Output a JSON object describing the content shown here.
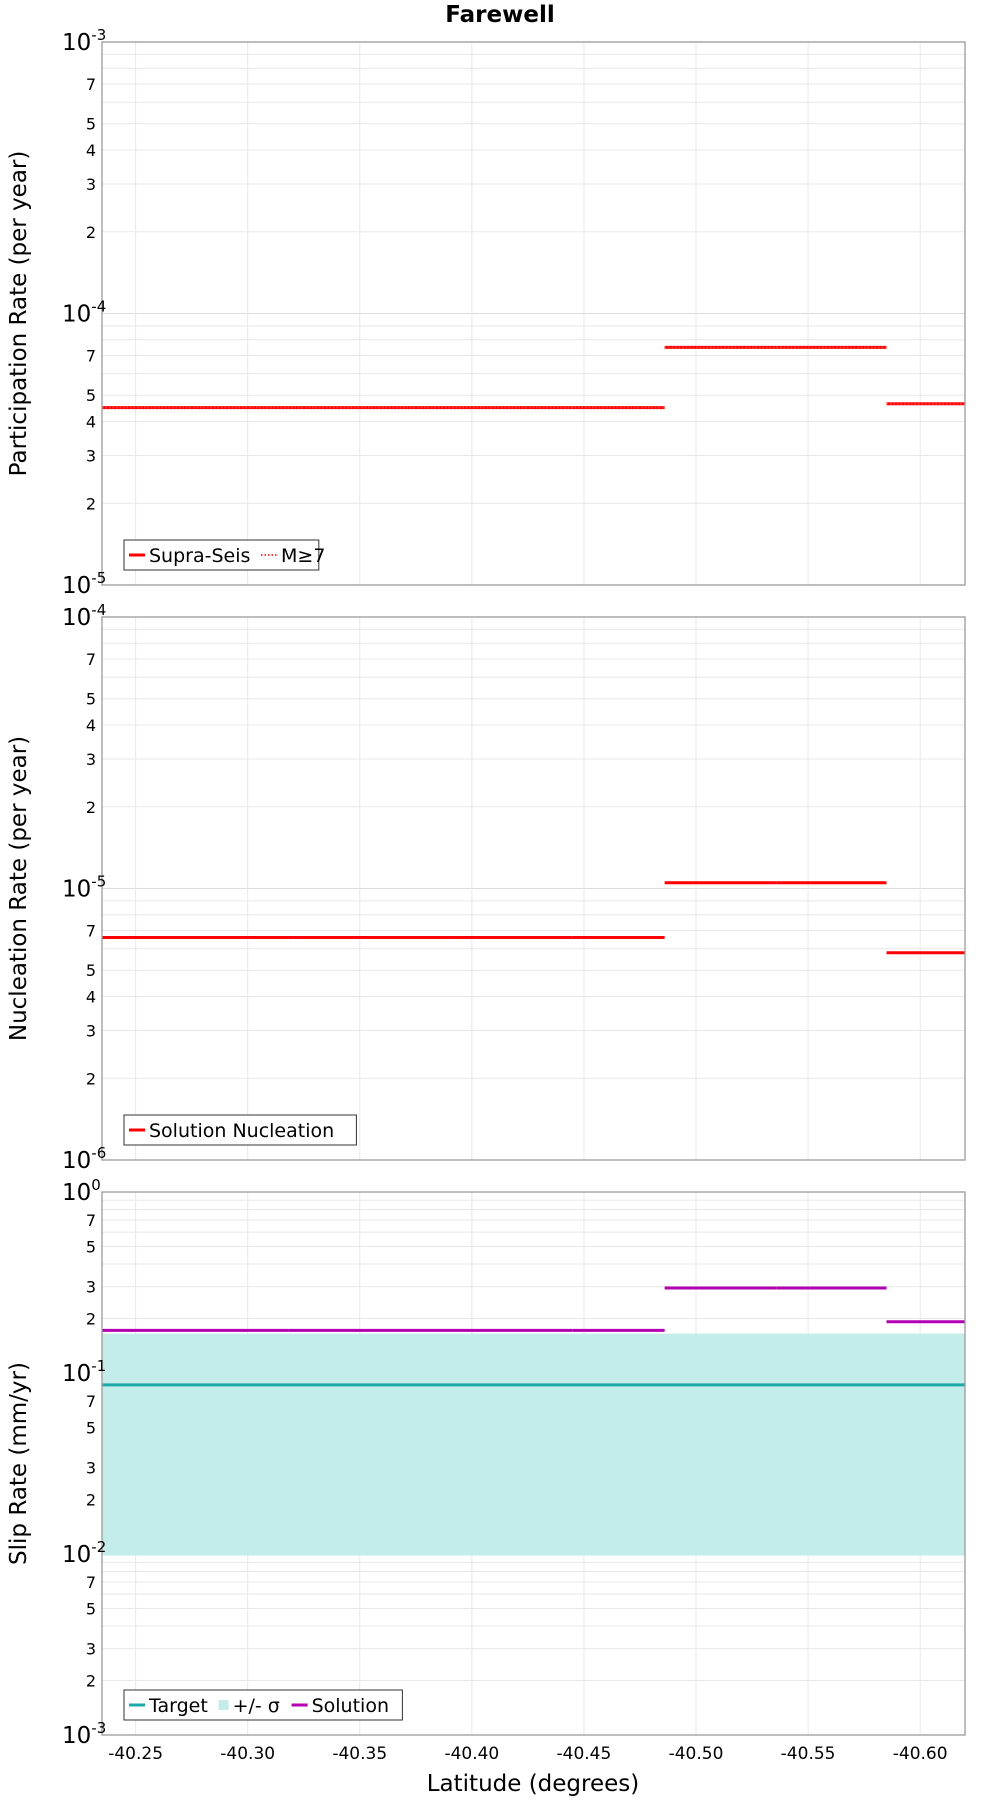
{
  "figure_title": "Farewell",
  "xlabel": "Latitude (degrees)",
  "colors": {
    "red": "#ff0000",
    "teal": "#1ea9a9",
    "band": "#c3ecea",
    "purple": "#b200b2",
    "grid": "#e8e8e8",
    "frame": "#9a9a9a"
  },
  "chart_data": [
    {
      "type": "line",
      "title": "",
      "ylabel": "Participation Rate (per year)",
      "xlim": [
        -40.235,
        -40.62
      ],
      "ylim": [
        1e-05,
        0.001
      ],
      "yscale": "log",
      "xticks": [
        -40.25,
        -40.3,
        -40.35,
        -40.4,
        -40.45,
        -40.5,
        -40.55,
        -40.6
      ],
      "xtick_labels": [
        "-40.25",
        "-40.30",
        "-40.35",
        "-40.40",
        "-40.45",
        "-40.50",
        "-40.55",
        "-40.60"
      ],
      "decade_labels": [
        {
          "base": "10",
          "exp": "-5"
        },
        {
          "base": "10",
          "exp": "-4"
        },
        {
          "base": "10",
          "exp": "-3"
        }
      ],
      "minor_labels": [
        "2",
        "3",
        "4",
        "5",
        "7"
      ],
      "legend_position": "bottom-left",
      "series": [
        {
          "name": "Supra-Seis",
          "style": "solid",
          "segments": [
            {
              "x": [
                -40.235,
                -40.318
              ],
              "y": 4.5e-05
            },
            {
              "x": [
                -40.318,
                -40.39
              ],
              "y": 4.5e-05
            },
            {
              "x": [
                -40.39,
                -40.445
              ],
              "y": 4.5e-05
            },
            {
              "x": [
                -40.445,
                -40.486
              ],
              "y": 4.5e-05
            },
            {
              "x": [
                -40.486,
                -40.536
              ],
              "y": 7.5e-05
            },
            {
              "x": [
                -40.536,
                -40.585
              ],
              "y": 7.5e-05
            },
            {
              "x": [
                -40.585,
                -40.62
              ],
              "y": 4.65e-05
            }
          ]
        },
        {
          "name": "M≥7",
          "style": "dotted",
          "segments": [
            {
              "x": [
                -40.235,
                -40.486
              ],
              "y": 4.5e-05
            },
            {
              "x": [
                -40.486,
                -40.585
              ],
              "y": 7.5e-05
            },
            {
              "x": [
                -40.585,
                -40.62
              ],
              "y": 4.65e-05
            }
          ]
        }
      ]
    },
    {
      "type": "line",
      "title": "",
      "ylabel": "Nucleation Rate (per year)",
      "xlim": [
        -40.235,
        -40.62
      ],
      "ylim": [
        1e-06,
        0.0001
      ],
      "yscale": "log",
      "decade_labels": [
        {
          "base": "10",
          "exp": "-6"
        },
        {
          "base": "10",
          "exp": "-5"
        },
        {
          "base": "10",
          "exp": "-4"
        }
      ],
      "minor_labels": [
        "2",
        "3",
        "4",
        "5",
        "7"
      ],
      "legend_position": "bottom-left",
      "series": [
        {
          "name": "Solution Nucleation",
          "style": "solid",
          "segments": [
            {
              "x": [
                -40.235,
                -40.318
              ],
              "y": 6.6e-06
            },
            {
              "x": [
                -40.318,
                -40.39
              ],
              "y": 6.6e-06
            },
            {
              "x": [
                -40.39,
                -40.445
              ],
              "y": 6.6e-06
            },
            {
              "x": [
                -40.445,
                -40.486
              ],
              "y": 6.6e-06
            },
            {
              "x": [
                -40.486,
                -40.536
              ],
              "y": 1.05e-05
            },
            {
              "x": [
                -40.536,
                -40.585
              ],
              "y": 1.05e-05
            },
            {
              "x": [
                -40.585,
                -40.62
              ],
              "y": 5.8e-06
            }
          ]
        }
      ]
    },
    {
      "type": "line",
      "title": "",
      "ylabel": "Slip Rate (mm/yr)",
      "xlim": [
        -40.235,
        -40.62
      ],
      "ylim": [
        0.001,
        1
      ],
      "yscale": "log",
      "decade_labels": [
        {
          "base": "10",
          "exp": "-3"
        },
        {
          "base": "10",
          "exp": "-2"
        },
        {
          "base": "10",
          "exp": "-1"
        },
        {
          "base": "10",
          "exp": "0"
        }
      ],
      "minor_labels": [
        "2",
        "3",
        "5",
        "7"
      ],
      "legend_position": "bottom-left",
      "band": {
        "name": "+/- σ",
        "x": [
          -40.235,
          -40.62
        ],
        "y_low": 0.0098,
        "y_high": 0.165
      },
      "series": [
        {
          "name": "Target",
          "style": "solid",
          "segments": [
            {
              "x": [
                -40.235,
                -40.62
              ],
              "y": 0.086
            }
          ]
        },
        {
          "name": "Solution",
          "style": "solid",
          "segments": [
            {
              "x": [
                -40.235,
                -40.318
              ],
              "y": 0.172
            },
            {
              "x": [
                -40.318,
                -40.39
              ],
              "y": 0.172
            },
            {
              "x": [
                -40.39,
                -40.445
              ],
              "y": 0.172
            },
            {
              "x": [
                -40.445,
                -40.486
              ],
              "y": 0.172
            },
            {
              "x": [
                -40.486,
                -40.536
              ],
              "y": 0.295
            },
            {
              "x": [
                -40.536,
                -40.585
              ],
              "y": 0.295
            },
            {
              "x": [
                -40.585,
                -40.62
              ],
              "y": 0.192
            }
          ]
        }
      ]
    }
  ]
}
